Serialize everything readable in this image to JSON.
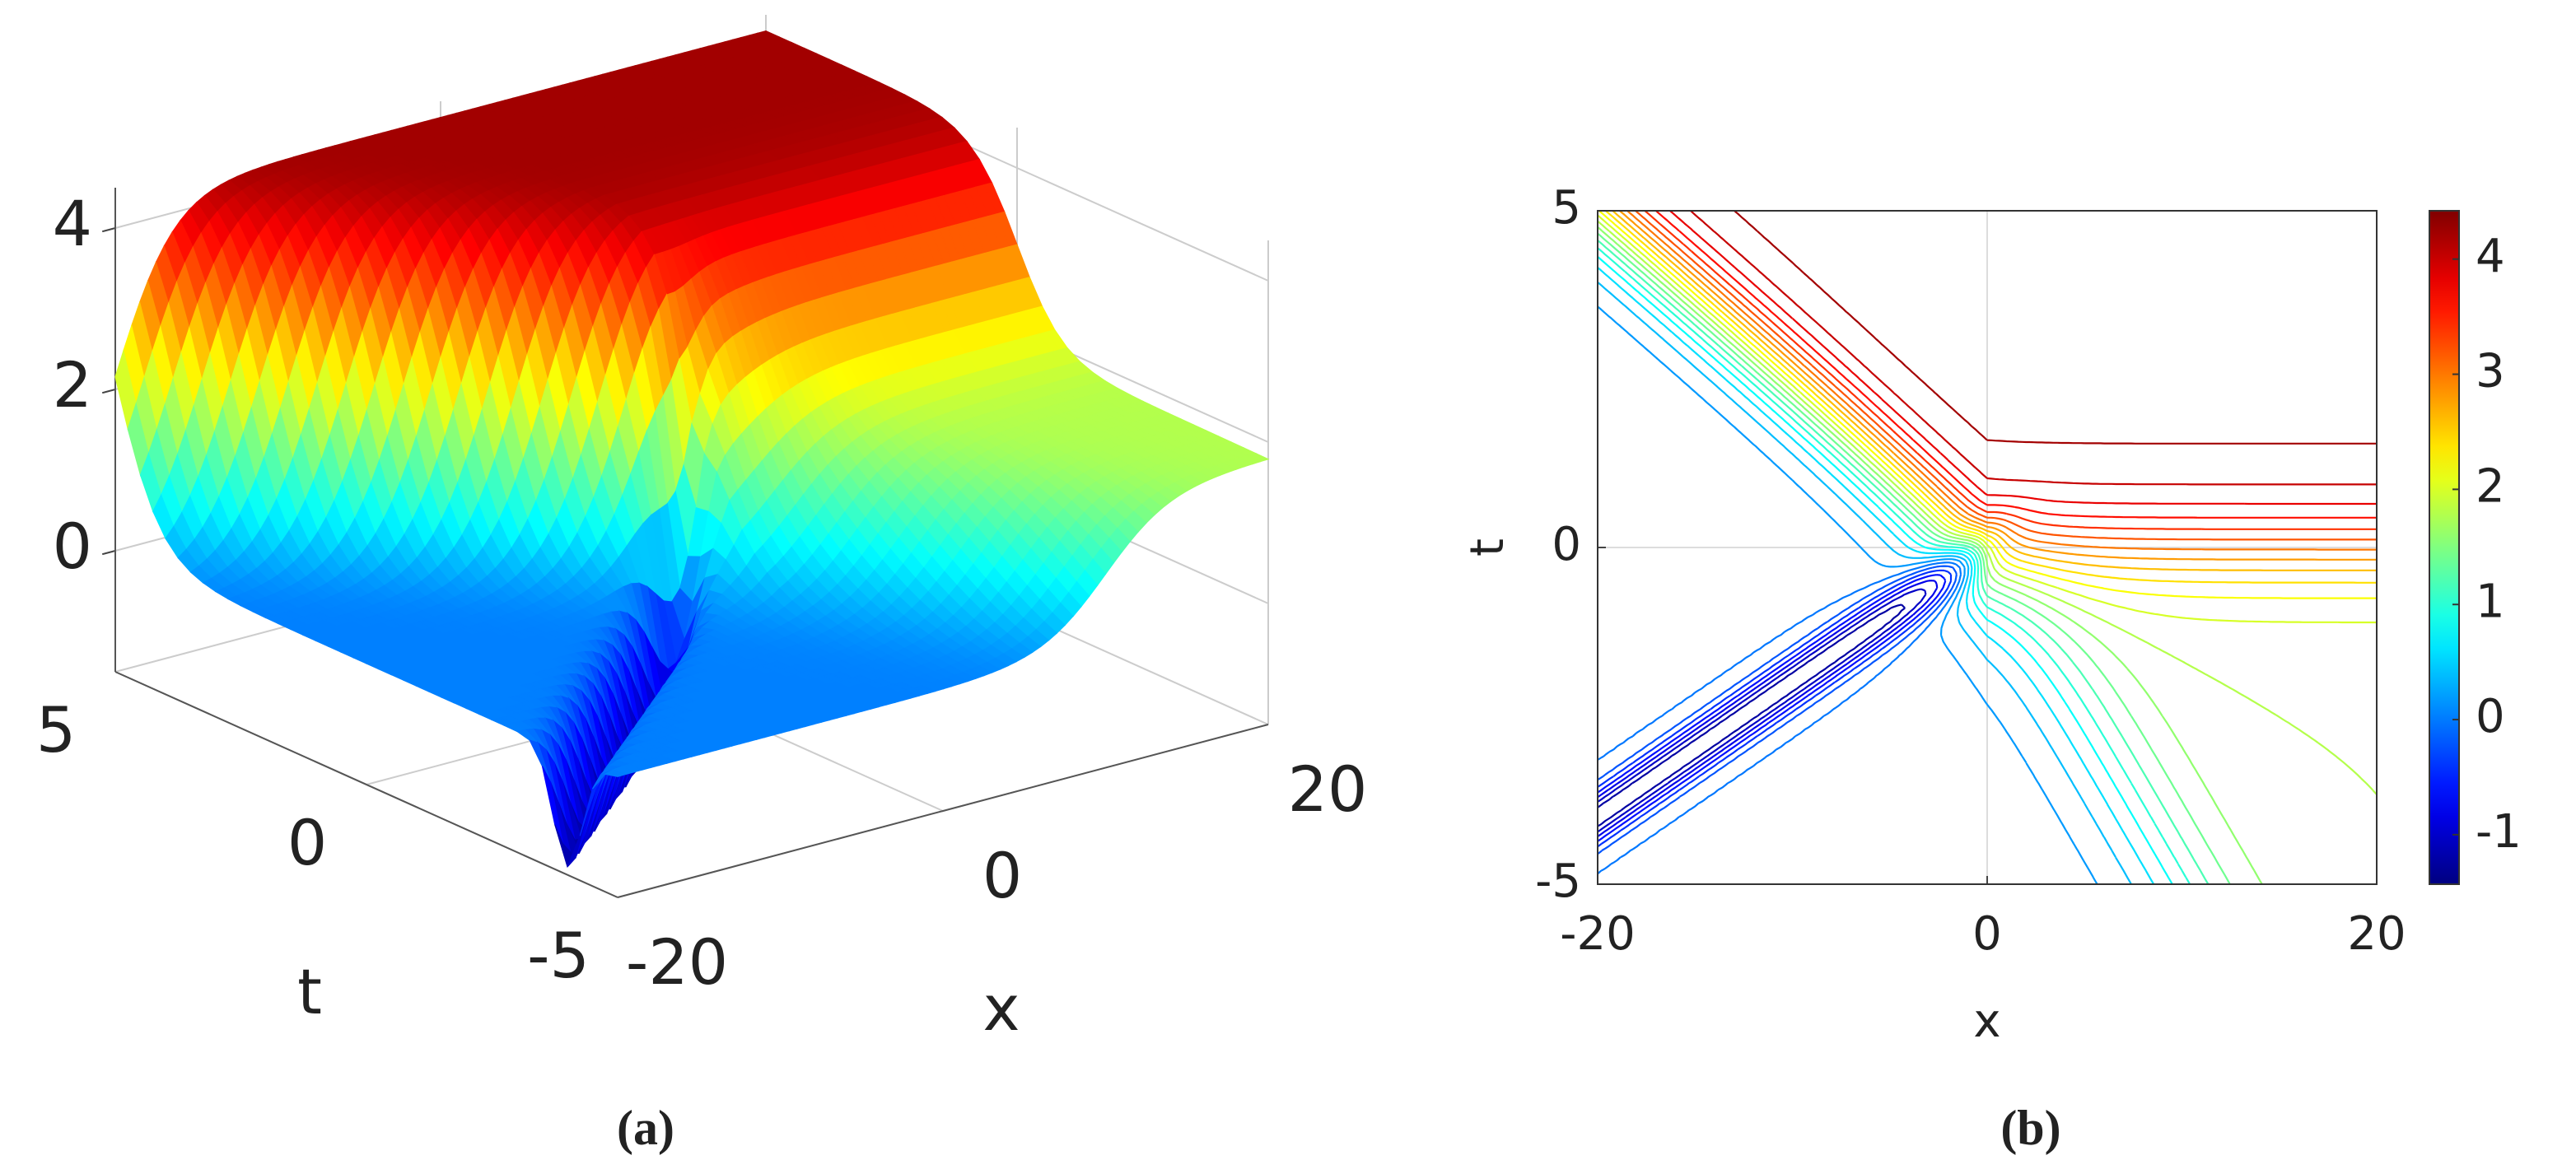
{
  "chart_data": [
    {
      "type": "surface",
      "caption": "(a)",
      "xlabel": "x",
      "ylabel": "t",
      "xlim": [
        -20,
        20
      ],
      "ylim": [
        -5,
        5
      ],
      "zlim": [
        -1.5,
        4.5
      ],
      "xticks": [
        -20,
        0,
        20
      ],
      "yticks": [
        -5,
        0,
        5
      ],
      "zticks": [
        0,
        2,
        4
      ],
      "colormap": "jet"
    },
    {
      "type": "contour",
      "caption": "(b)",
      "xlabel": "x",
      "ylabel": "t",
      "xlim": [
        -20,
        20
      ],
      "ylim": [
        -5,
        5
      ],
      "xticks": [
        -20,
        0,
        20
      ],
      "yticks": [
        -5,
        0,
        5
      ],
      "clim": [
        -1.43,
        4.42
      ],
      "cticks": [
        -1,
        0,
        1,
        2,
        3,
        4
      ],
      "colormap": "jet",
      "grid": true
    }
  ]
}
